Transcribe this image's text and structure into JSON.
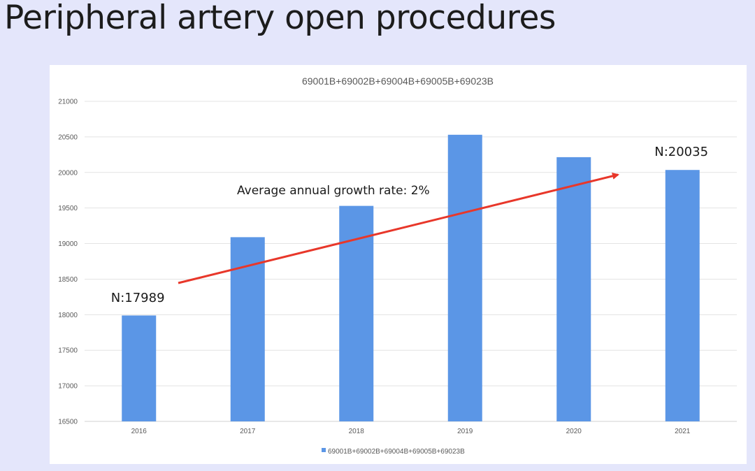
{
  "slide": {
    "title": "Peripheral artery open procedures"
  },
  "chart_data": {
    "type": "bar",
    "title": "69001B+69002B+69004B+69005B+69023B",
    "categories": [
      "2016",
      "2017",
      "2018",
      "2019",
      "2020",
      "2021"
    ],
    "series": [
      {
        "name": "69001B+69002B+69004B+69005B+69023B",
        "values": [
          17989,
          19090,
          19530,
          20530,
          20215,
          20035
        ],
        "color": "#5b96e6"
      }
    ],
    "xlabel": "",
    "ylabel": "",
    "ylim": [
      16500,
      21000
    ],
    "yticks": [
      16500,
      17000,
      17500,
      18000,
      18500,
      19000,
      19500,
      20000,
      20500,
      21000
    ],
    "grid": true,
    "legend_position": "bottom",
    "annotations": {
      "first_label": "N:17989",
      "last_label": "N:20035",
      "growth_label": "Average annual growth rate: 2%",
      "arrow_color": "#e8372a"
    }
  }
}
